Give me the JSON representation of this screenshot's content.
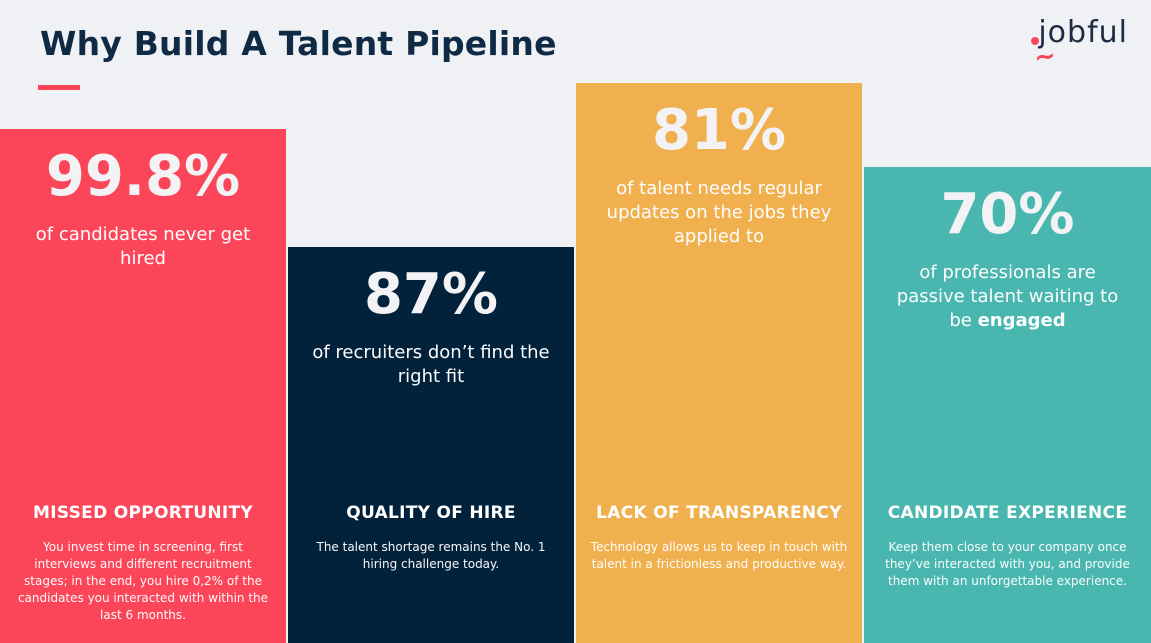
{
  "page": {
    "title": "Why Build A Talent Pipeline",
    "background_color": "#EFF1F4",
    "title_color": "#0F2A44",
    "accent_color": "#FB4659"
  },
  "logo": {
    "text": "jobful",
    "text_color": "#1D2B45",
    "dot_color": "#FB4659",
    "tilde": "~"
  },
  "columns": [
    {
      "id": "missed-opportunity",
      "color": "#FB4659",
      "percent": "99.8%",
      "subtitle": "of candidates never get\nhired",
      "heading": "MISSED OPPORTUNITY",
      "body": "You invest time in screening, first\ninterviews and different recruitment\nstages; in the end, you hire 0,2% of the\ncandidates you interacted with within the\nlast 6 months."
    },
    {
      "id": "quality-of-hire",
      "color": "#02223C",
      "percent": "87%",
      "subtitle": "of recruiters don’t find the\nright fit",
      "heading": "QUALITY OF HIRE",
      "body": "The talent shortage remains the No. 1\nhiring challenge today."
    },
    {
      "id": "lack-of-transparency",
      "color": "#F1B04E",
      "percent": "81%",
      "subtitle": "of talent needs regular\nupdates on the jobs they\napplied to",
      "heading": "LACK OF TRANSPARENCY",
      "body": "Technology allows us to keep in touch with\ntalent in a frictionless and productive way."
    },
    {
      "id": "candidate-experience",
      "color": "#49B7AF",
      "percent": "70%",
      "subtitle_prefix": "of professionals are\npassive talent waiting to\nbe ",
      "subtitle_bold": "engaged",
      "heading": "CANDIDATE EXPERIENCE",
      "body": "Keep them close to your company once\nthey’ve interacted with you, and provide\nthem with an unforgettable experience."
    }
  ]
}
